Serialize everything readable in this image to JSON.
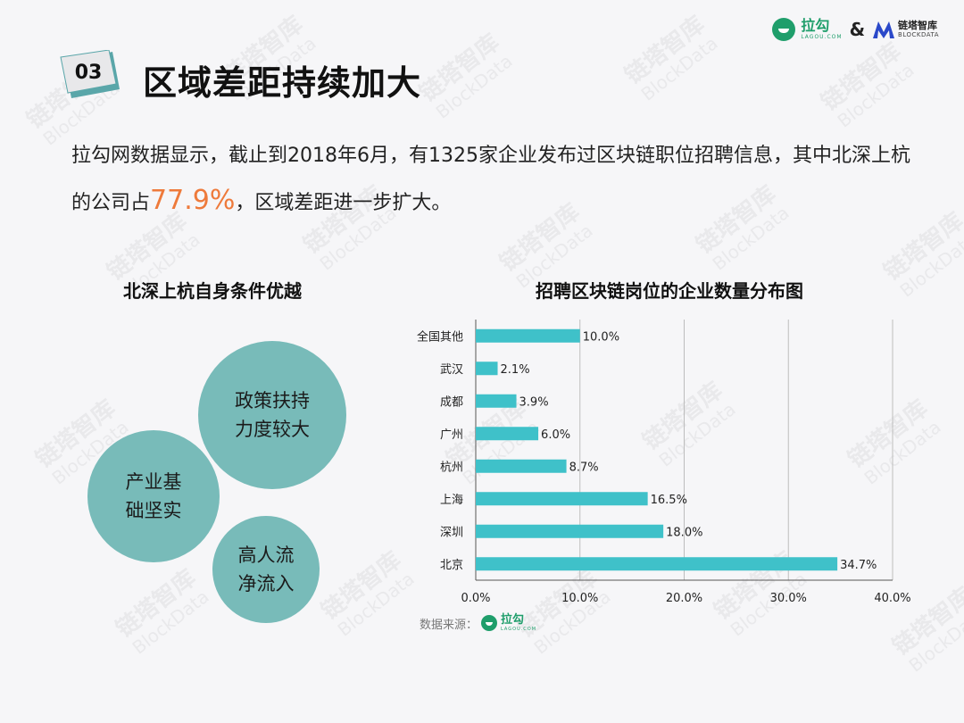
{
  "watermark": {
    "cn": "链塔智库",
    "en": "BlockData"
  },
  "header": {
    "lagou_logo": {
      "cn": "拉勾",
      "en": "LAGOU.COM"
    },
    "amp": "&",
    "blockdata_logo": {
      "cn": "链塔智库",
      "en": "BLOCKDATA"
    }
  },
  "section": {
    "number": "03",
    "title": "区域差距持续加大"
  },
  "intro": {
    "part1": "拉勾网数据显示，截止到2018年6月，有1325家企业发布过区块链职位招聘信息，其中北深上杭的公司占",
    "highlight": "77.9%",
    "part2": "，区域差距进一步扩大。"
  },
  "left": {
    "title": "北深上杭自身条件优越",
    "bubbles": [
      {
        "text": "政策扶持力度较大"
      },
      {
        "text": "产业基础坚实"
      },
      {
        "text": "高人流净流入"
      }
    ]
  },
  "colors": {
    "bar": "#3fc1c9",
    "bubble": "#78bbb9",
    "highlight": "#ee7a3b",
    "badge": "#5aa6a9"
  },
  "chart_data": {
    "type": "bar",
    "orientation": "horizontal",
    "title": "招聘区块链岗位的企业数量分布图",
    "categories": [
      "全国其他",
      "武汉",
      "成都",
      "广州",
      "杭州",
      "上海",
      "深圳",
      "北京"
    ],
    "values": [
      10.0,
      2.1,
      3.9,
      6.0,
      8.7,
      16.5,
      18.0,
      34.7
    ],
    "value_labels": [
      "10.0%",
      "2.1%",
      "3.9%",
      "6.0%",
      "8.7%",
      "16.5%",
      "18.0%",
      "34.7%"
    ],
    "xlim": [
      0,
      40
    ],
    "xticks": [
      0,
      10,
      20,
      30,
      40
    ],
    "xtick_labels": [
      "0.0%",
      "10.0%",
      "20.0%",
      "30.0%",
      "40.0%"
    ],
    "grid": true,
    "xlabel": "",
    "ylabel": ""
  },
  "source": {
    "label": "数据来源：",
    "logo_cn": "拉勾",
    "logo_en": "LAGOU.COM"
  }
}
